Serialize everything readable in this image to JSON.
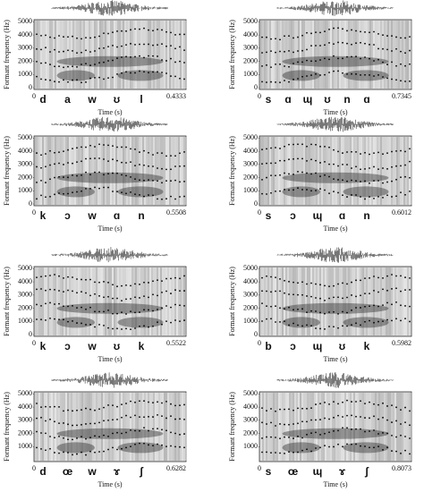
{
  "panels": [
    {
      "ylabel": "Formant frequency (Hz)",
      "yticks": [
        "0",
        "1000",
        "2000",
        "3000",
        "4000",
        "5000"
      ],
      "xstart": "0",
      "xend": "0.4333",
      "phonemes": [
        "d",
        "a",
        "w",
        "ʊ",
        "l"
      ],
      "xlabel": "Time (s)"
    },
    {
      "ylabel": "Formant frequency (Hz)",
      "yticks": [
        "0",
        "1000",
        "2000",
        "3000",
        "4000",
        "5000"
      ],
      "xstart": "0",
      "xend": "0.7345",
      "phonemes": [
        "s",
        "ɑ",
        "ɰ",
        "ʊ",
        "n",
        "ɑ"
      ],
      "xlabel": "Time (s)"
    },
    {
      "ylabel": "Formant frequency (Hz)",
      "yticks": [
        "0",
        "1000",
        "2000",
        "3000",
        "4000",
        "5000"
      ],
      "xstart": "0",
      "xend": "0.5508",
      "phonemes": [
        "k",
        "ɔ",
        "w",
        "ɑ",
        "n"
      ],
      "xlabel": "Time (s)"
    },
    {
      "ylabel": "Formant frequency (Hz)",
      "yticks": [
        "0",
        "1000",
        "2000",
        "3000",
        "4000",
        "5000"
      ],
      "xstart": "0",
      "xend": "0.6012",
      "phonemes": [
        "s",
        "ɔ",
        "ɰ",
        "ɑ",
        "n"
      ],
      "xlabel": "Time (s)"
    },
    {
      "ylabel": "Formant frequency (Hz)",
      "yticks": [
        "0",
        "1000",
        "2000",
        "3000",
        "4000",
        "5000"
      ],
      "xstart": "0",
      "xend": "0.5522",
      "phonemes": [
        "k",
        "ɔ",
        "w",
        "ʊ",
        "k"
      ],
      "xlabel": "Time (s)"
    },
    {
      "ylabel": "Formant frequency (Hz)",
      "yticks": [
        "0",
        "1000",
        "2000",
        "3000",
        "4000",
        "5000"
      ],
      "xstart": "0",
      "xend": "0.5982",
      "phonemes": [
        "b",
        "ɔ",
        "ɰ",
        "ʊ",
        "k"
      ],
      "xlabel": "Time (s)"
    },
    {
      "ylabel": "Formant frequency (Hz)",
      "yticks": [
        "1000",
        "2000",
        "3000",
        "4000",
        "5000"
      ],
      "xstart": "0",
      "xend": "0.6282",
      "phonemes": [
        "d",
        "œ",
        "w",
        "ɤ",
        "ʃ"
      ],
      "xlabel": "Time (s)"
    },
    {
      "ylabel": "Formant frequency (Hz)",
      "yticks": [
        "1000",
        "2000",
        "3000",
        "4000",
        "5000"
      ],
      "xstart": "0",
      "xend": "0.8073",
      "phonemes": [
        "s",
        "œ",
        "ɰ",
        "ɤ",
        "ʃ"
      ],
      "xlabel": "Time (s)"
    }
  ]
}
